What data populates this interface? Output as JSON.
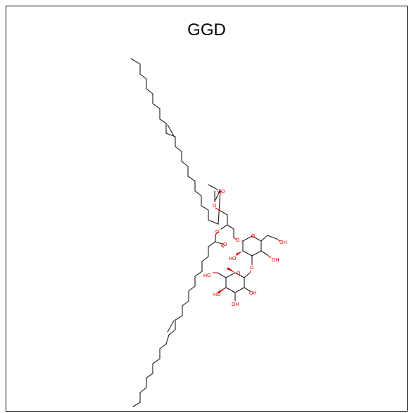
{
  "title": "GGD",
  "colors": {
    "carbon_bond": "#1a1a1a",
    "heteroatom": "#e00000",
    "frame_border": "#000000"
  },
  "atoms": {
    "ester1_carbonyl_o": "O",
    "ester1_bridge_o": "O",
    "ester2_bridge_o": "O",
    "ester2_carbonyl_o": "O",
    "glycosidic_o1": "O",
    "ring1_o": "O",
    "ring1_c6_oh": "OH",
    "ring1_c2_oh": "HO",
    "ring1_c4_oh": "OH",
    "glycosidic_o2": "O",
    "ring2_o": "O",
    "ring2_c6_oh": "HO",
    "ring2_c4_oh": "HO",
    "ring2_c3_oh": "OH",
    "ring2_c2_oh": "OH"
  }
}
